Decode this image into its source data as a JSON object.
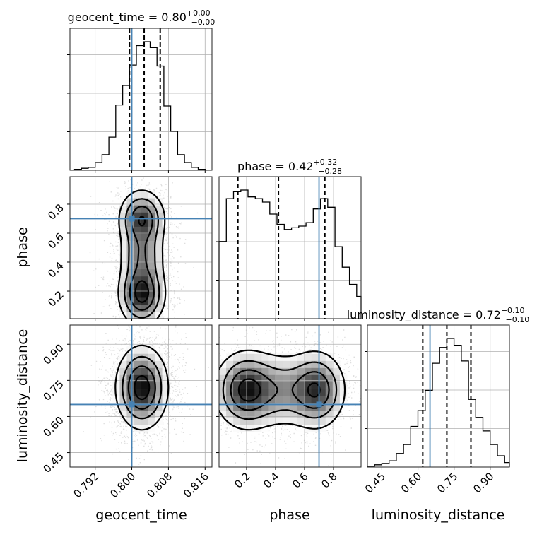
{
  "chart_data": {
    "type": "corner",
    "parameters": [
      "geocent_time",
      "phase",
      "luminosity_distance"
    ],
    "truths": {
      "geocent_time": 0.8,
      "phase": 0.7,
      "luminosity_distance": 0.65
    },
    "ranges": {
      "geocent_time": [
        0.7865,
        0.8175
      ],
      "phase": [
        0.01,
        0.99
      ],
      "luminosity_distance": [
        0.39,
        0.98
      ]
    },
    "ticks": {
      "geocent_time": [
        "0.792",
        "0.800",
        "0.808",
        "0.816"
      ],
      "phase": [
        "0.2",
        "0.4",
        "0.6",
        "0.8"
      ],
      "luminosity_distance": [
        "0.45",
        "0.60",
        "0.75",
        "0.90"
      ]
    },
    "titles": [
      {
        "param": "geocent_time",
        "base": "geocent_time = 0.80",
        "plus": "+0.00",
        "minus": "−0.00"
      },
      {
        "param": "phase",
        "base": "phase = 0.42",
        "plus": "+0.32",
        "minus": "−0.28"
      },
      {
        "param": "luminosity_distance",
        "base": "luminosity_distance = 0.72",
        "plus": "+0.10",
        "minus": "−0.10"
      }
    ],
    "quantiles": {
      "geocent_time": [
        0.7995,
        0.8027,
        0.8062
      ],
      "phase": [
        0.14,
        0.42,
        0.74
      ],
      "luminosity_distance": [
        0.62,
        0.72,
        0.82
      ]
    },
    "histograms": {
      "geocent_time": {
        "edges": [
          0.7875,
          0.789,
          0.7905,
          0.792,
          0.7935,
          0.795,
          0.7965,
          0.798,
          0.7995,
          0.801,
          0.8025,
          0.804,
          0.8055,
          0.807,
          0.8085,
          0.81,
          0.8115,
          0.813,
          0.8145,
          0.816
        ],
        "counts": [
          1,
          2,
          3,
          8,
          16,
          34,
          67,
          87,
          108,
          128,
          132,
          126,
          107,
          66,
          40,
          16,
          8,
          3,
          1
        ]
      },
      "phase": {
        "edges": [
          0.01,
          0.06,
          0.11,
          0.16,
          0.21,
          0.26,
          0.31,
          0.36,
          0.41,
          0.46,
          0.51,
          0.56,
          0.61,
          0.66,
          0.71,
          0.76,
          0.81,
          0.86,
          0.91,
          0.96,
          0.99
        ],
        "counts": [
          450,
          700,
          740,
          750,
          710,
          700,
          680,
          610,
          550,
          520,
          530,
          540,
          560,
          640,
          700,
          650,
          420,
          300,
          200,
          130
        ]
      },
      "luminosity_distance": {
        "edges": [
          0.39,
          0.42,
          0.45,
          0.48,
          0.51,
          0.54,
          0.57,
          0.6,
          0.63,
          0.66,
          0.69,
          0.72,
          0.75,
          0.78,
          0.81,
          0.84,
          0.87,
          0.9,
          0.93,
          0.96,
          0.98
        ],
        "counts": [
          2,
          5,
          8,
          14,
          30,
          50,
          90,
          125,
          170,
          230,
          265,
          285,
          270,
          235,
          150,
          110,
          80,
          50,
          25,
          10
        ]
      }
    },
    "density_2d": {
      "phase_vs_geocent_time": {
        "x": "geocent_time",
        "y": "phase",
        "modes": [
          {
            "x": 0.8022,
            "y": 0.18,
            "sx": 0.0025,
            "sy": 0.11,
            "w": 1.0
          },
          {
            "x": 0.8022,
            "y": 0.7,
            "sx": 0.0025,
            "sy": 0.1,
            "w": 0.85
          },
          {
            "x": 0.8022,
            "y": 0.45,
            "sx": 0.0025,
            "sy": 0.12,
            "w": 0.55
          }
        ]
      },
      "luminosity_distance_vs_geocent_time": {
        "x": "geocent_time",
        "y": "luminosity_distance",
        "modes": [
          {
            "x": 0.8022,
            "y": 0.72,
            "sx": 0.0028,
            "sy": 0.085,
            "w": 1.0
          }
        ]
      },
      "luminosity_distance_vs_phase": {
        "x": "phase",
        "y": "luminosity_distance",
        "modes": [
          {
            "x": 0.2,
            "y": 0.71,
            "sx": 0.11,
            "sy": 0.08,
            "w": 1.0
          },
          {
            "x": 0.68,
            "y": 0.71,
            "sx": 0.1,
            "sy": 0.08,
            "w": 0.9
          },
          {
            "x": 0.44,
            "y": 0.71,
            "sx": 0.12,
            "sy": 0.08,
            "w": 0.45
          }
        ]
      }
    },
    "grid": true,
    "truth_color": "#4682b4",
    "line_color": "#000000",
    "grid_color": "#b0b0b0"
  }
}
